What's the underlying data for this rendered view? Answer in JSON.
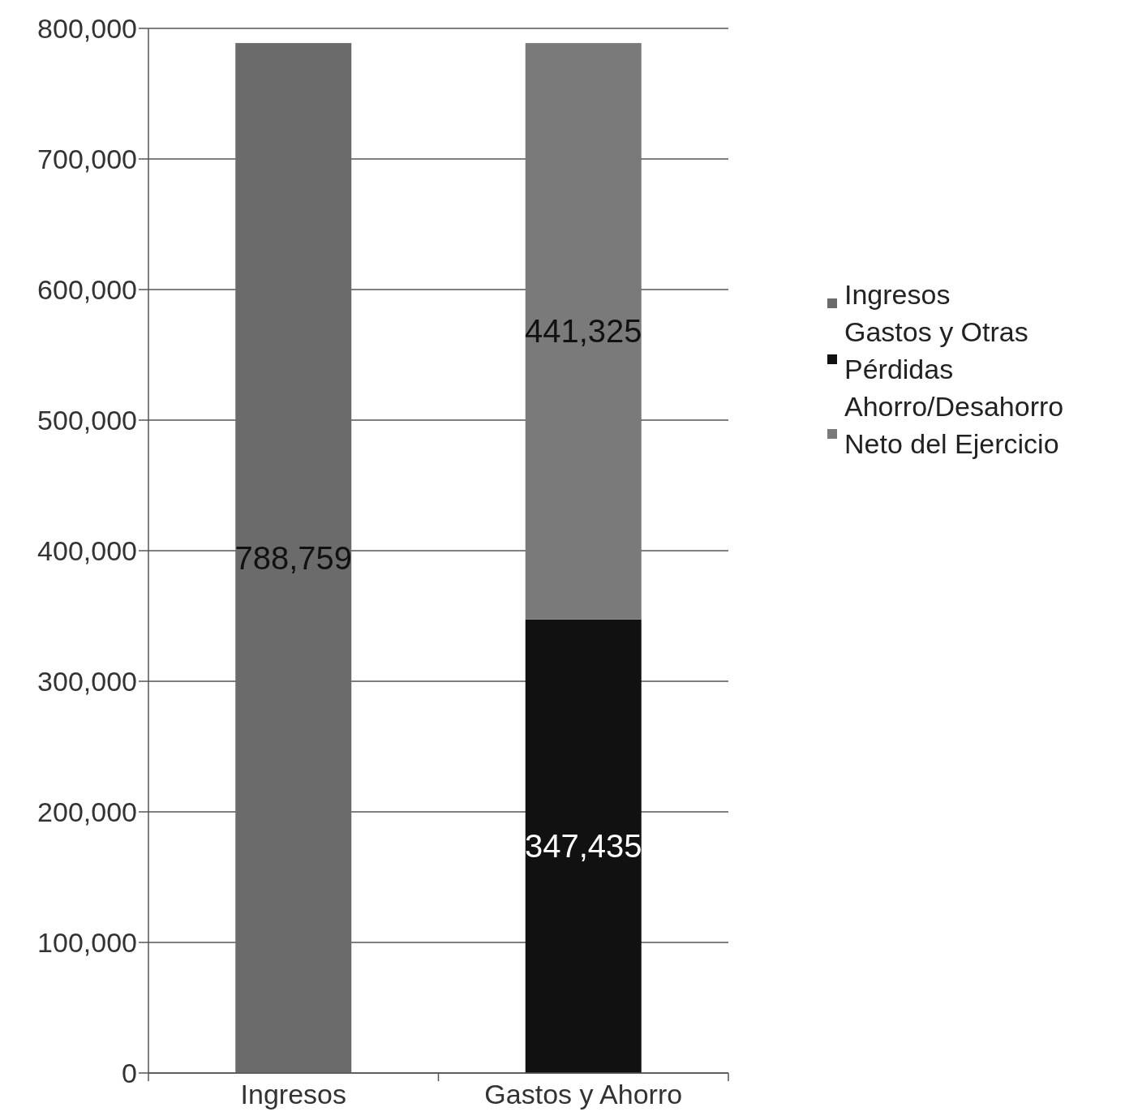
{
  "chart_data": {
    "type": "bar",
    "stacked": true,
    "categories": [
      "Ingresos",
      "Gastos y Ahorro"
    ],
    "series": [
      {
        "name": "Ingresos",
        "color": "#6b6b6b",
        "values": [
          788759,
          null
        ],
        "value_labels": [
          "788,759",
          null
        ]
      },
      {
        "name": "Gastos y Otras Pérdidas",
        "color": "#111111",
        "values": [
          null,
          347435
        ],
        "value_labels": [
          null,
          "347,435"
        ]
      },
      {
        "name": "Ahorro/Desahorro Neto del Ejercicio",
        "color": "#7a7a7a",
        "values": [
          null,
          441325
        ],
        "value_labels": [
          null,
          "441,325"
        ]
      }
    ],
    "ylim": [
      0,
      800000
    ],
    "yticks": [
      {
        "value": 0,
        "label": "0"
      },
      {
        "value": 100000,
        "label": "100,000"
      },
      {
        "value": 200000,
        "label": "200,000"
      },
      {
        "value": 300000,
        "label": "300,000"
      },
      {
        "value": 400000,
        "label": "400,000"
      },
      {
        "value": 500000,
        "label": "500,000"
      },
      {
        "value": 600000,
        "label": "600,000"
      },
      {
        "value": 700000,
        "label": "700,000"
      },
      {
        "value": 800000,
        "label": "800,000"
      }
    ],
    "grid": "y",
    "legend": "right"
  }
}
